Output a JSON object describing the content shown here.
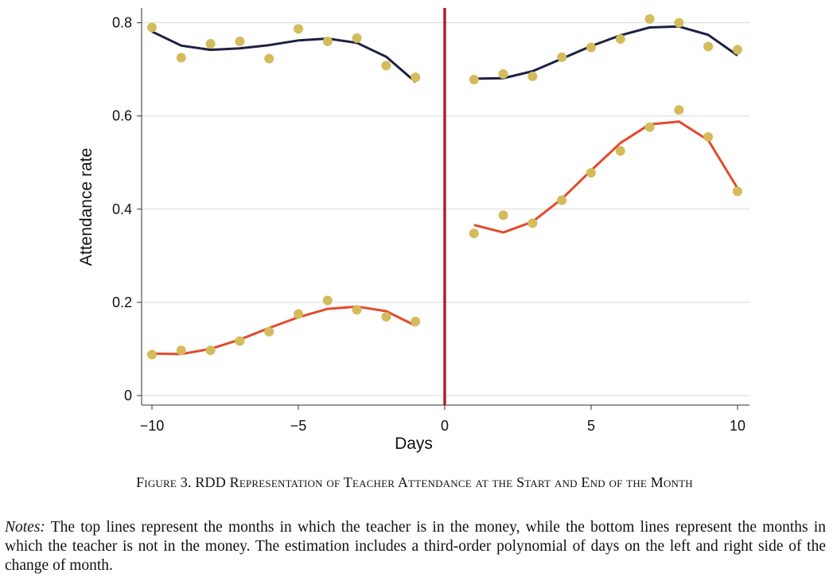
{
  "chart_data": {
    "type": "scatter",
    "xlabel": "Days",
    "ylabel": "Attendance rate",
    "xlim": [
      -10.5,
      10.5
    ],
    "ylim": [
      -0.02,
      0.83
    ],
    "x_ticks": [
      -10,
      -5,
      0,
      5,
      10
    ],
    "x_tick_labels": [
      "−10",
      "−5",
      "0",
      "5",
      "10"
    ],
    "y_ticks": [
      0,
      0.2,
      0.4,
      0.6,
      0.8
    ],
    "y_tick_labels": [
      "0",
      "0.2",
      "0.4",
      "0.6",
      "0.8"
    ],
    "grid": "horizontal",
    "cutoff_x": 0,
    "series": [
      {
        "points": [
          {
            "x": -10,
            "y": 0.79
          },
          {
            "x": -9,
            "y": 0.725
          },
          {
            "x": -8,
            "y": 0.755
          },
          {
            "x": -7,
            "y": 0.76
          },
          {
            "x": -6,
            "y": 0.723
          },
          {
            "x": -5,
            "y": 0.787
          },
          {
            "x": -4,
            "y": 0.76
          },
          {
            "x": -3,
            "y": 0.767
          },
          {
            "x": -2,
            "y": 0.708
          },
          {
            "x": -1,
            "y": 0.683
          },
          {
            "x": 1,
            "y": 0.678
          },
          {
            "x": 2,
            "y": 0.69
          },
          {
            "x": 3,
            "y": 0.685
          },
          {
            "x": 4,
            "y": 0.726
          },
          {
            "x": 5,
            "y": 0.747
          },
          {
            "x": 6,
            "y": 0.765
          },
          {
            "x": 7,
            "y": 0.808
          },
          {
            "x": 8,
            "y": 0.8
          },
          {
            "x": 9,
            "y": 0.749
          },
          {
            "x": 10,
            "y": 0.742
          }
        ],
        "fit_left": [
          [
            -10,
            0.781
          ],
          [
            -9,
            0.751
          ],
          [
            -8,
            0.742
          ],
          [
            -7,
            0.745
          ],
          [
            -6,
            0.752
          ],
          [
            -5,
            0.762
          ],
          [
            -4,
            0.766
          ],
          [
            -3,
            0.757
          ],
          [
            -2,
            0.727
          ],
          [
            -1,
            0.673
          ]
        ],
        "fit_right": [
          [
            1,
            0.68
          ],
          [
            2,
            0.681
          ],
          [
            3,
            0.696
          ],
          [
            4,
            0.723
          ],
          [
            5,
            0.75
          ],
          [
            6,
            0.773
          ],
          [
            7,
            0.79
          ],
          [
            8,
            0.792
          ],
          [
            9,
            0.774
          ],
          [
            10,
            0.73
          ]
        ]
      },
      {
        "points": [
          {
            "x": -10,
            "y": 0.088
          },
          {
            "x": -9,
            "y": 0.097
          },
          {
            "x": -8,
            "y": 0.097
          },
          {
            "x": -7,
            "y": 0.117
          },
          {
            "x": -6,
            "y": 0.137
          },
          {
            "x": -5,
            "y": 0.175
          },
          {
            "x": -4,
            "y": 0.204
          },
          {
            "x": -3,
            "y": 0.184
          },
          {
            "x": -2,
            "y": 0.169
          },
          {
            "x": -1,
            "y": 0.159
          },
          {
            "x": 1,
            "y": 0.348
          },
          {
            "x": 2,
            "y": 0.387
          },
          {
            "x": 3,
            "y": 0.37
          },
          {
            "x": 4,
            "y": 0.419
          },
          {
            "x": 5,
            "y": 0.478
          },
          {
            "x": 6,
            "y": 0.525
          },
          {
            "x": 7,
            "y": 0.576
          },
          {
            "x": 8,
            "y": 0.613
          },
          {
            "x": 9,
            "y": 0.555
          },
          {
            "x": 10,
            "y": 0.438
          }
        ],
        "fit_left": [
          [
            -10,
            0.09
          ],
          [
            -9,
            0.089
          ],
          [
            -8,
            0.1
          ],
          [
            -7,
            0.12
          ],
          [
            -6,
            0.145
          ],
          [
            -5,
            0.168
          ],
          [
            -4,
            0.186
          ],
          [
            -3,
            0.191
          ],
          [
            -2,
            0.181
          ],
          [
            -1,
            0.15
          ]
        ],
        "fit_right": [
          [
            1,
            0.366
          ],
          [
            2,
            0.35
          ],
          [
            3,
            0.373
          ],
          [
            4,
            0.422
          ],
          [
            5,
            0.483
          ],
          [
            6,
            0.542
          ],
          [
            7,
            0.582
          ],
          [
            8,
            0.588
          ],
          [
            9,
            0.548
          ],
          [
            10,
            0.445
          ]
        ]
      }
    ]
  },
  "colors": {
    "dots": "#d4bb5c",
    "top_line": "#1c2143",
    "bottom_line": "#e34a2d",
    "cutoff": "#b2202e",
    "grid": "#d9d9d9",
    "axis": "#333333"
  },
  "caption": {
    "label": "Figure 3.",
    "title": "RDD Representation of Teacher Attendance at the Start and End of the Month"
  },
  "notes": {
    "lead": "Notes:",
    "text": "The top lines represent the months in which the teacher is in the money, while the bottom lines represent the months in which the teacher is not in the money. The estimation includes a third-order polynomial of days on the left and right side of the change of month."
  }
}
